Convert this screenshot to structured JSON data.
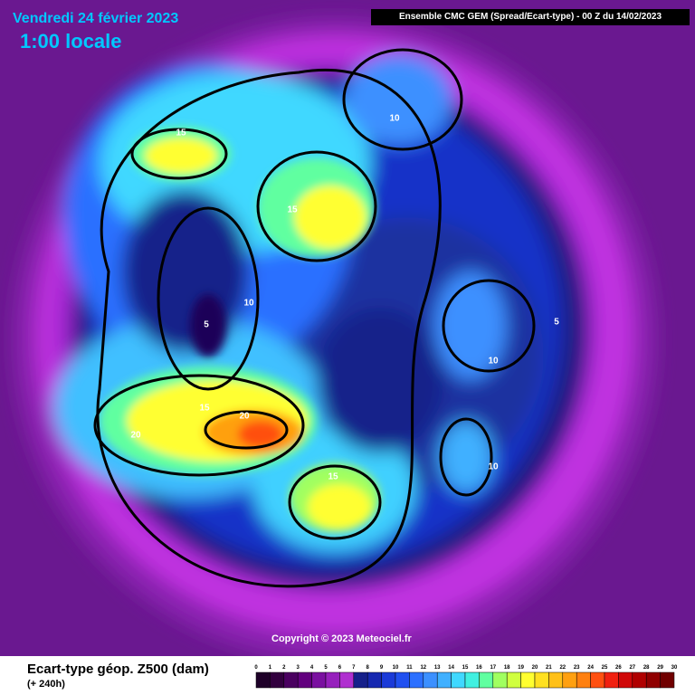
{
  "header": {
    "date": "Vendredi 24 février 2023",
    "time": "1:00 locale",
    "model": "Ensemble CMC GEM  (Spread/Ecart-type) - 00 Z du 14/02/2023"
  },
  "copyright": "Copyright © 2023 Meteociel.fr",
  "legend": {
    "title": "Ecart-type géop. Z500 (dam)",
    "subtitle": "(+ 240h)",
    "labels": [
      "0",
      "1",
      "2",
      "3",
      "4",
      "5",
      "6",
      "7",
      "8",
      "9",
      "10",
      "11",
      "12",
      "13",
      "14",
      "15",
      "16",
      "17",
      "18",
      "19",
      "20",
      "21",
      "22",
      "23",
      "24",
      "25",
      "26",
      "27",
      "28",
      "29",
      "30"
    ],
    "colors": [
      "#1e0028",
      "#32003e",
      "#4a0060",
      "#62007e",
      "#7a10a0",
      "#9620bc",
      "#b030d0",
      "#16208a",
      "#1628b0",
      "#1a3ad8",
      "#2050f0",
      "#2c70ff",
      "#3c90ff",
      "#40b0ff",
      "#40d8ff",
      "#40f0e0",
      "#60ff a0",
      "#a0ff60",
      "#d0ff40",
      "#ffff30",
      "#ffe020",
      "#ffc018",
      "#ffa010",
      "#ff8010",
      "#ff5010",
      "#f02010",
      "#d00808",
      "#b00000",
      "#900000",
      "#700000"
    ]
  },
  "contours": [
    {
      "label": "15"
    },
    {
      "label": "10"
    },
    {
      "label": "15"
    },
    {
      "label": "10"
    },
    {
      "label": "5"
    },
    {
      "label": "5"
    },
    {
      "label": "10"
    },
    {
      "label": "15"
    },
    {
      "label": "20"
    },
    {
      "label": "20"
    },
    {
      "label": "10"
    },
    {
      "label": "15"
    }
  ]
}
